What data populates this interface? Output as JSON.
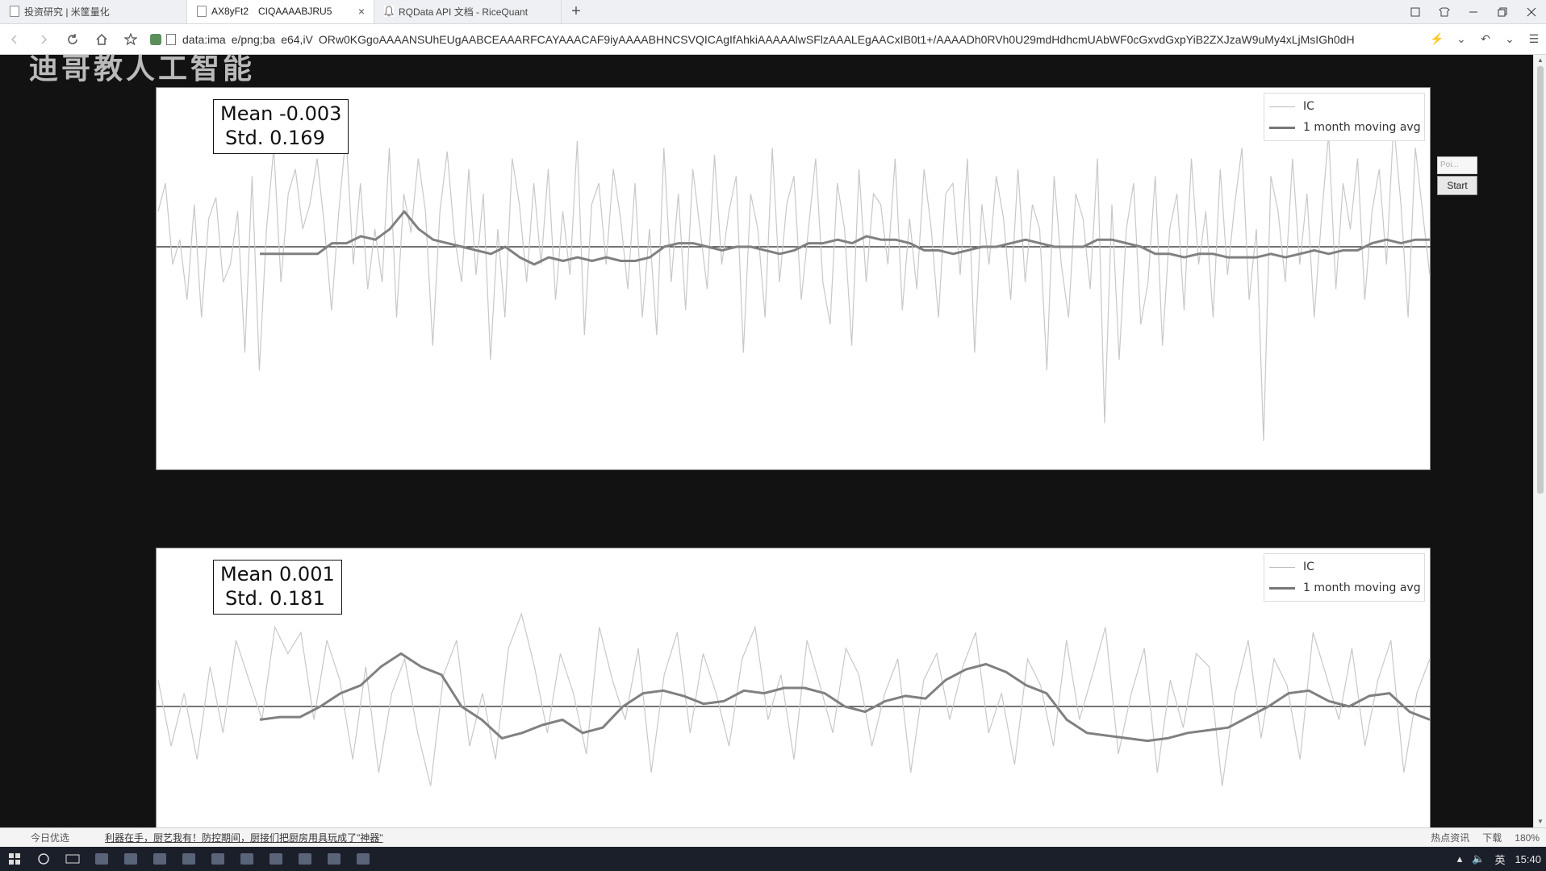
{
  "browser": {
    "tabs": [
      {
        "label": "投资研究 | 米筐量化",
        "active": false
      },
      {
        "label": "AX8yFt2 CIQAAAABJRU5",
        "active": true
      },
      {
        "label": "RQData API 文档 - RiceQuant",
        "active": false
      }
    ],
    "new_tab_symbol": "+",
    "url": "data:ima e/png;ba e64,iV ORw0KGgoAAAANSUhEUgAABCEAAARFCAYAAACAF9iyAAAABHNCSVQICAgIfAhkiAAAAAlwSFlzAAALEgAACxIB0t1+/AAAADh0RVh0U29mdHdhcmUAbWF0cGxvdGxpYiB2ZXJzaW9uMy4xLjMsIGh0dH",
    "zoom": "180%"
  },
  "watermark": "迪哥教人工智能",
  "panel": {
    "input_placeholder": "Poi...",
    "start_label": "Start"
  },
  "figures": [
    {
      "mean_label": "Mean -0.003",
      "std_label": "Std. 0.169",
      "legend": [
        "IC",
        "1 month moving avg"
      ]
    },
    {
      "mean_label": "Mean 0.001",
      "std_label": "Std. 0.181",
      "legend": [
        "IC",
        "1 month moving avg"
      ]
    }
  ],
  "chart_data": [
    {
      "type": "line",
      "title": "",
      "mean": -0.003,
      "std": 0.169,
      "ylim": [
        -0.6,
        0.45
      ],
      "hline": 0,
      "series": [
        {
          "name": "IC",
          "values": [
            0.1,
            0.18,
            -0.05,
            0.02,
            -0.15,
            0.12,
            -0.2,
            0.08,
            0.14,
            -0.1,
            -0.05,
            0.1,
            -0.3,
            0.2,
            -0.35,
            0.05,
            0.28,
            -0.1,
            0.15,
            0.22,
            0.05,
            0.12,
            0.25,
            0.06,
            -0.18,
            0.1,
            0.32,
            -0.05,
            0.18,
            -0.12,
            0.05,
            -0.1,
            0.28,
            -0.2,
            0.15,
            0.04,
            0.25,
            0.1,
            -0.28,
            0.1,
            0.27,
            0.03,
            -0.1,
            0.22,
            -0.08,
            0.15,
            -0.32,
            0.05,
            -0.2,
            0.25,
            0.12,
            -0.1,
            0.18,
            -0.05,
            0.22,
            -0.15,
            0.1,
            -0.08,
            0.3,
            -0.25,
            0.12,
            0.18,
            -0.05,
            0.22,
            0.08,
            -0.12,
            0.18,
            -0.2,
            0.05,
            -0.25,
            0.28,
            -0.1,
            0.15,
            -0.18,
            0.22,
            0.05,
            -0.12,
            0.26,
            -0.05,
            0.1,
            0.2,
            -0.3,
            0.15,
            0.05,
            -0.2,
            0.28,
            -0.1,
            0.12,
            0.2,
            -0.15,
            0.05,
            0.25,
            -0.1,
            -0.22,
            0.18,
            0.05,
            -0.28,
            0.22,
            -0.1,
            0.15,
            0.12,
            -0.05,
            0.25,
            -0.18,
            0.08,
            -0.12,
            0.22,
            0.05,
            -0.2,
            0.15,
            0.18,
            -0.08,
            0.25,
            -0.3,
            0.12,
            -0.05,
            0.2,
            0.08,
            -0.15,
            0.22,
            -0.1,
            0.12,
            0.05,
            -0.35,
            0.2,
            -0.05,
            -0.2,
            0.15,
            0.08,
            -0.12,
            0.25,
            -0.5,
            0.12,
            -0.32,
            0.05,
            0.18,
            -0.22,
            -0.1,
            0.2,
            -0.28,
            0.05,
            0.15,
            -0.18,
            0.25,
            -0.05,
            0.1,
            -0.2,
            0.22,
            -0.08,
            0.12,
            0.28,
            -0.15,
            0.05,
            -0.55,
            0.2,
            0.1,
            -0.1,
            0.25,
            -0.05,
            0.15,
            -0.2,
            0.08,
            0.32,
            -0.12,
            0.18,
            0.05,
            0.25,
            -0.15,
            0.1,
            0.22,
            -0.05,
            0.35,
            0.12,
            -0.2,
            0.28,
            0.1,
            -0.08
          ]
        },
        {
          "name": "1 month moving avg",
          "values": [
            -0.02,
            -0.02,
            -0.02,
            -0.02,
            -0.02,
            0.01,
            0.01,
            0.03,
            0.02,
            0.05,
            0.1,
            0.05,
            0.02,
            0.01,
            0.0,
            -0.01,
            -0.02,
            0.0,
            -0.03,
            -0.05,
            -0.03,
            -0.04,
            -0.03,
            -0.04,
            -0.03,
            -0.04,
            -0.04,
            -0.03,
            0.0,
            0.01,
            0.01,
            0.0,
            -0.01,
            0.0,
            0.0,
            -0.01,
            -0.02,
            -0.01,
            0.01,
            0.01,
            0.02,
            0.01,
            0.03,
            0.02,
            0.02,
            0.01,
            -0.01,
            -0.01,
            -0.02,
            -0.01,
            0.0,
            0.0,
            0.01,
            0.02,
            0.01,
            0.0,
            0.0,
            0.0,
            0.02,
            0.02,
            0.01,
            0.0,
            -0.02,
            -0.02,
            -0.03,
            -0.02,
            -0.02,
            -0.03,
            -0.03,
            -0.03,
            -0.02,
            -0.03,
            -0.02,
            -0.01,
            -0.02,
            -0.01,
            -0.01,
            0.01,
            0.02,
            0.01,
            0.02,
            0.02
          ]
        }
      ]
    },
    {
      "type": "line",
      "title": "",
      "mean": 0.001,
      "std": 0.181,
      "ylim": [
        -0.5,
        0.45
      ],
      "hline": 0,
      "series": [
        {
          "name": "IC",
          "values": [
            0.1,
            -0.15,
            0.05,
            -0.2,
            0.15,
            -0.1,
            0.25,
            0.1,
            -0.05,
            0.3,
            0.2,
            0.28,
            -0.05,
            0.25,
            0.1,
            -0.2,
            0.15,
            -0.25,
            0.05,
            0.18,
            -0.1,
            -0.3,
            0.12,
            0.25,
            -0.15,
            0.05,
            -0.2,
            0.22,
            0.35,
            0.15,
            -0.1,
            0.2,
            0.05,
            -0.18,
            0.3,
            0.1,
            -0.05,
            0.22,
            -0.25,
            0.12,
            0.28,
            -0.1,
            0.2,
            0.05,
            -0.15,
            0.18,
            0.3,
            -0.05,
            0.12,
            -0.2,
            0.25,
            0.08,
            -0.1,
            0.22,
            0.12,
            -0.15,
            0.05,
            0.18,
            -0.25,
            0.1,
            0.2,
            -0.05,
            0.15,
            0.28,
            -0.1,
            0.05,
            -0.22,
            0.18,
            0.08,
            -0.15,
            0.25,
            -0.05,
            0.12,
            0.3,
            -0.18,
            0.05,
            0.22,
            -0.25,
            0.1,
            -0.08,
            0.2,
            0.15,
            -0.3,
            0.05,
            0.25,
            -0.12,
            0.18,
            0.08,
            -0.2,
            0.28,
            0.12,
            -0.05,
            0.22,
            -0.15,
            0.1,
            0.25,
            -0.25,
            0.05,
            0.18
          ]
        },
        {
          "name": "1 month moving avg",
          "values": [
            -0.05,
            -0.04,
            -0.04,
            0.0,
            0.05,
            0.08,
            0.15,
            0.2,
            0.15,
            0.12,
            0.0,
            -0.05,
            -0.12,
            -0.1,
            -0.07,
            -0.05,
            -0.1,
            -0.08,
            0.0,
            0.05,
            0.06,
            0.04,
            0.01,
            0.02,
            0.06,
            0.05,
            0.07,
            0.07,
            0.05,
            0.0,
            -0.02,
            0.02,
            0.04,
            0.03,
            0.1,
            0.14,
            0.16,
            0.13,
            0.08,
            0.05,
            -0.05,
            -0.1,
            -0.11,
            -0.12,
            -0.13,
            -0.12,
            -0.1,
            -0.09,
            -0.08,
            -0.04,
            0.0,
            0.05,
            0.06,
            0.02,
            0.0,
            0.04,
            0.05,
            -0.02,
            -0.05
          ]
        }
      ]
    }
  ],
  "newsbar": {
    "today": "今日优选",
    "headline": "利器在手，厨艺我有！防控期间，厨接们把厨房用具玩成了\"神器\"",
    "hot": "热点资讯",
    "download": "下载",
    "zoom": "180%"
  },
  "taskbar": {
    "ime": "英",
    "time": "15:40"
  }
}
